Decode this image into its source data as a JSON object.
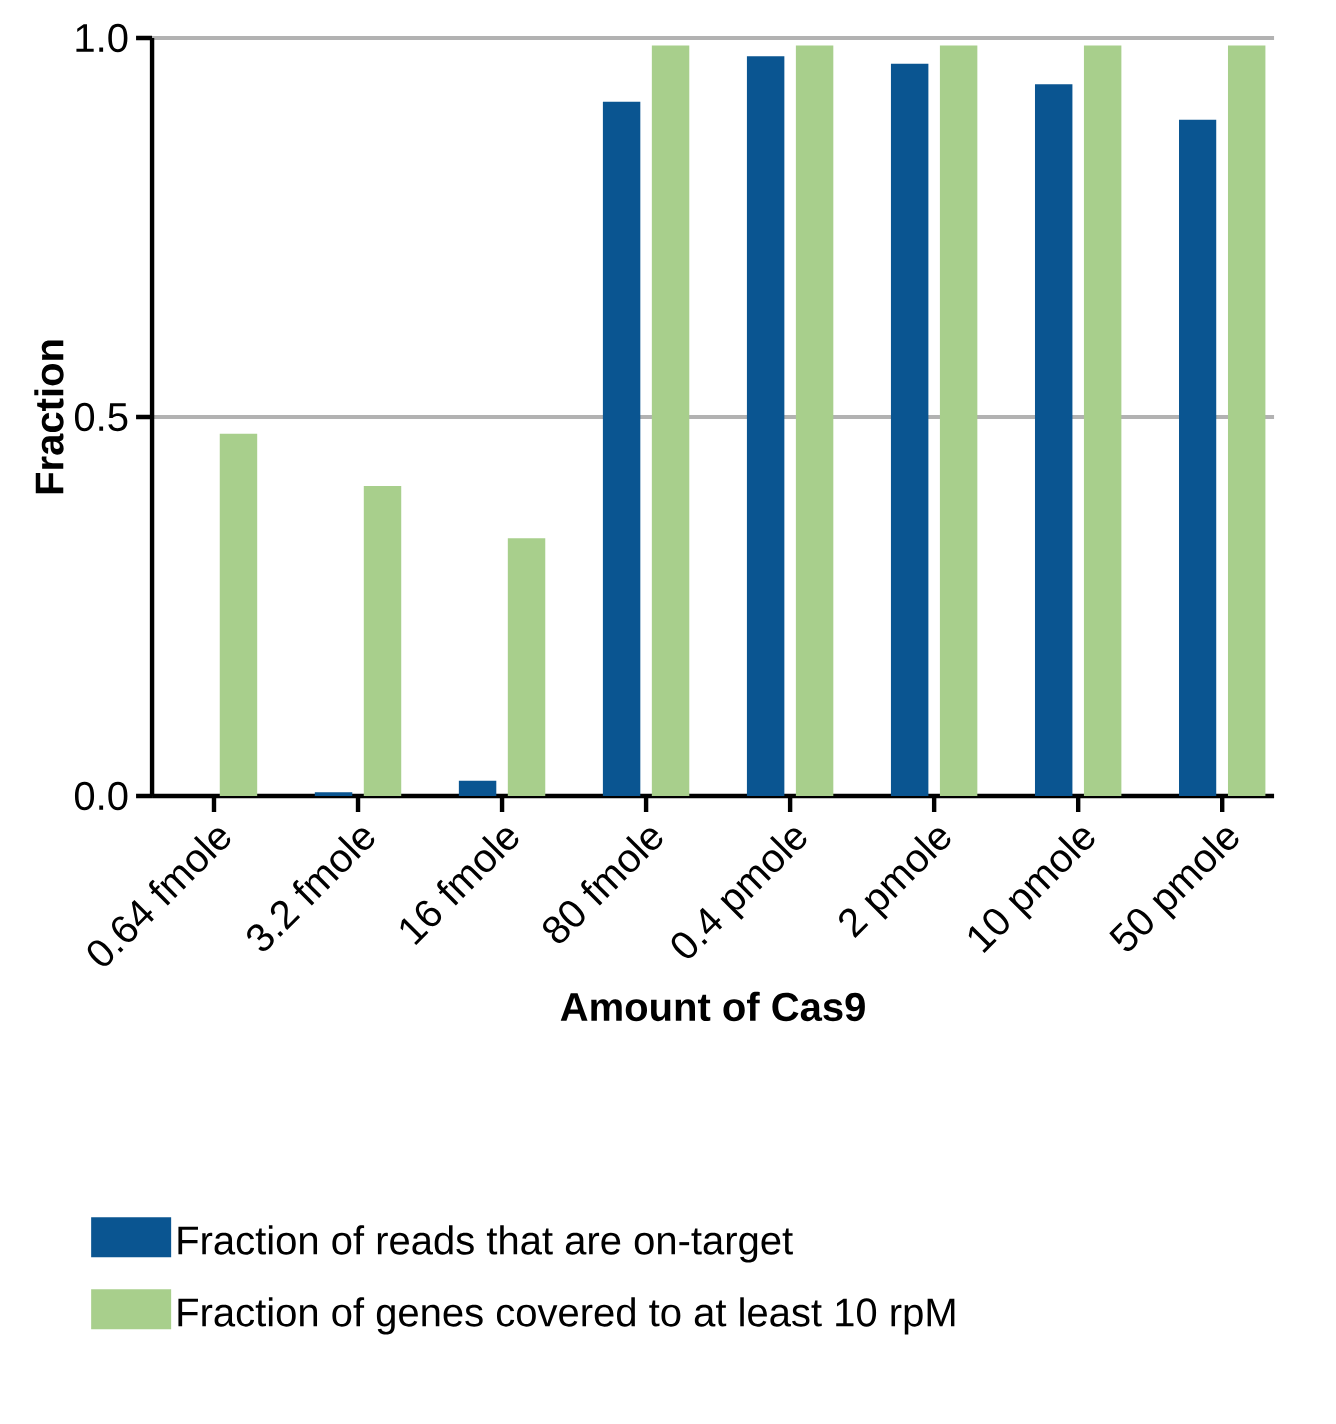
{
  "chart_data": {
    "type": "bar",
    "xlabel": "Amount of Cas9",
    "ylabel": "Fraction",
    "categories": [
      "0.64 fmole",
      "3.2 fmole",
      "16 fmole",
      "80 fmole",
      "0.4 pmole",
      "2 pmole",
      "10 pmole",
      "50 pmole"
    ],
    "series": [
      {
        "name": "Fraction of reads that are on-target",
        "color": "#0a5591",
        "values": [
          0,
          0.005,
          0.02,
          0.916,
          0.976,
          0.966,
          0.939,
          0.892
        ]
      },
      {
        "name": "Fraction of genes covered to at least 10 rpM",
        "color": "#a8cf8c",
        "values": [
          0.478,
          0.409,
          0.34,
          0.99,
          0.99,
          0.99,
          0.99,
          0.99
        ]
      }
    ],
    "ylim": [
      0,
      1
    ],
    "yticks": [
      {
        "value": 0,
        "label": "0.0"
      },
      {
        "value": 0.5,
        "label": "0.5"
      },
      {
        "value": 1,
        "label": "1.0"
      }
    ],
    "grid": "y",
    "legend": "bottom"
  }
}
